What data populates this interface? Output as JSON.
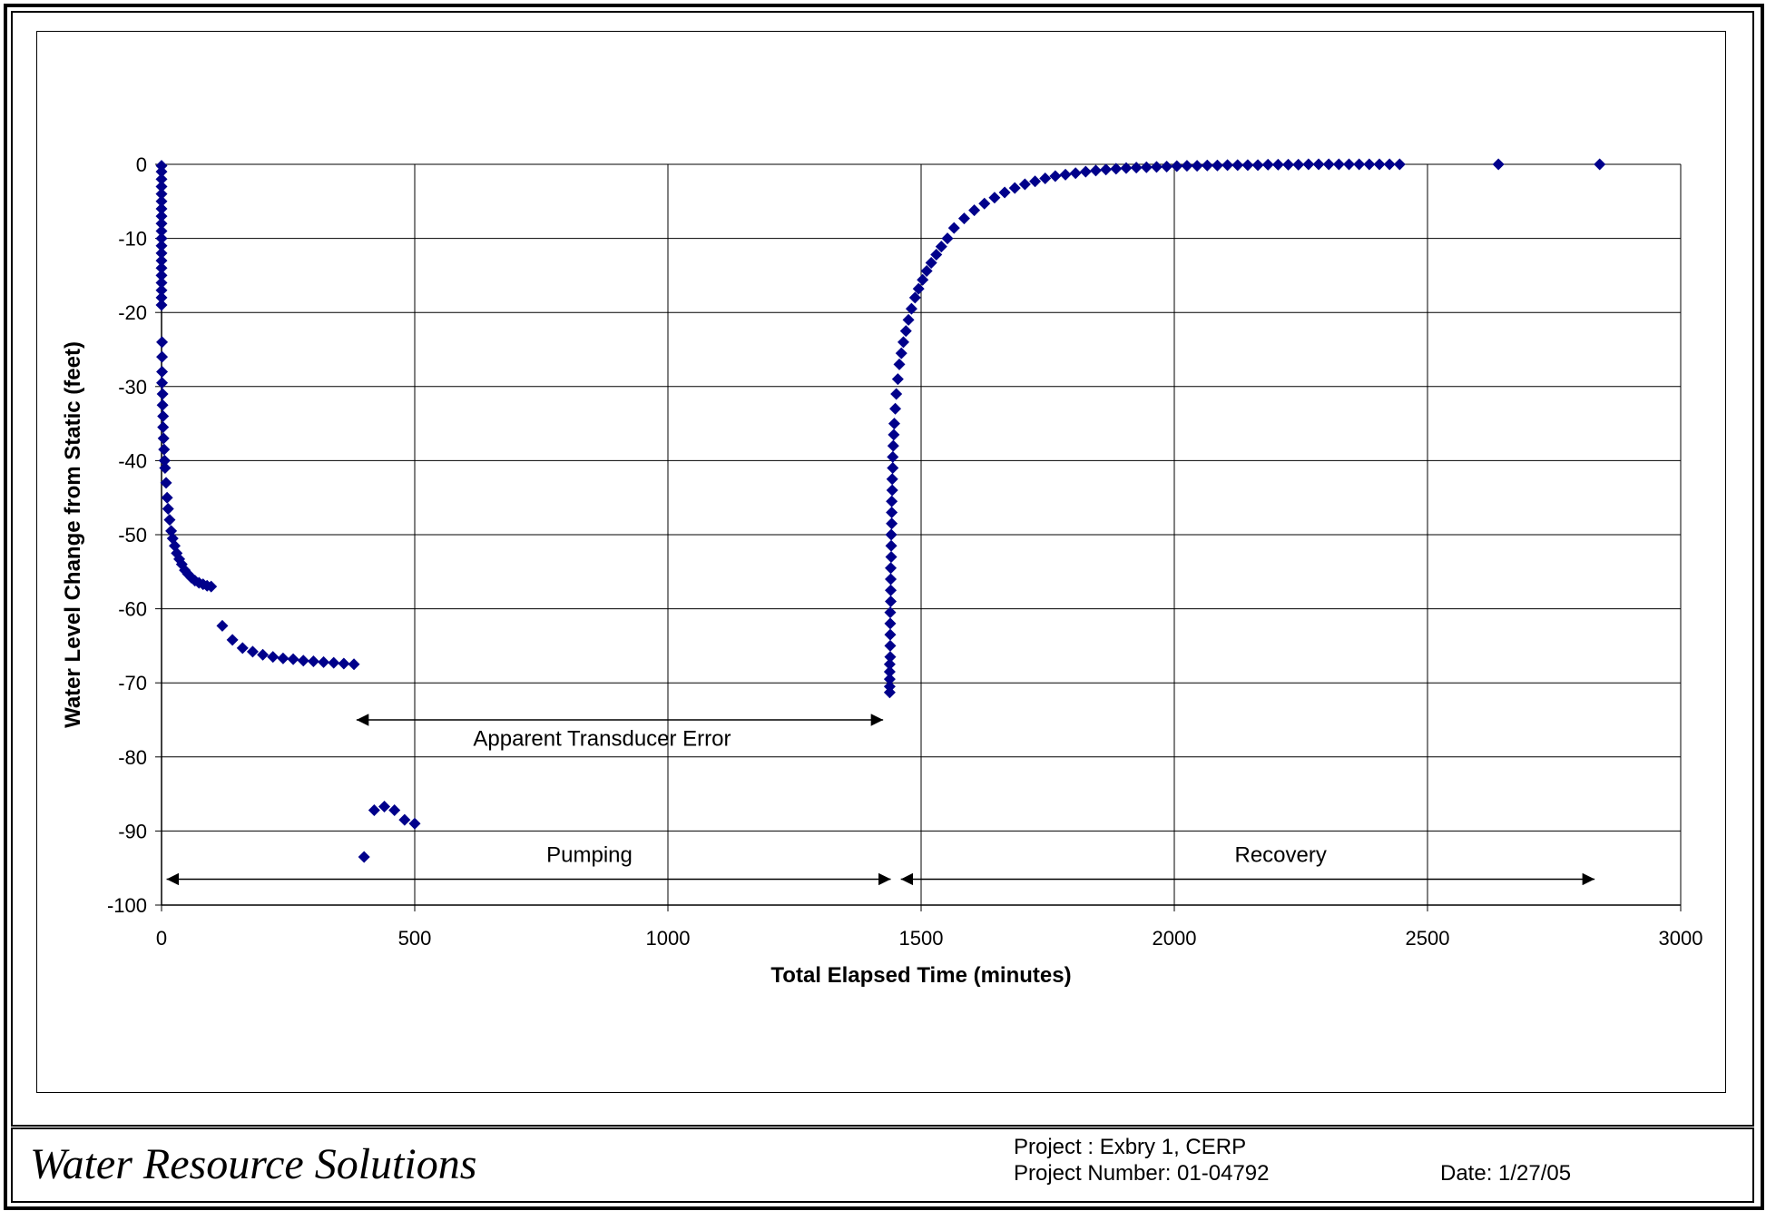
{
  "chart_data": {
    "type": "scatter",
    "title": "",
    "xlabel": "Total Elapsed Time (minutes)",
    "ylabel": "Water Level Change from Static (feet)",
    "xlim": [
      0,
      3000
    ],
    "ylim": [
      -100,
      0
    ],
    "x_ticks": [
      0,
      500,
      1000,
      1500,
      2000,
      2500,
      3000
    ],
    "y_ticks": [
      0,
      -10,
      -20,
      -30,
      -40,
      -50,
      -60,
      -70,
      -80,
      -90,
      -100
    ],
    "grid": true,
    "legend": "none",
    "marker": "diamond",
    "series": [
      {
        "color": "#00008B",
        "points": [
          [
            0,
            -0.2
          ],
          [
            0,
            -1
          ],
          [
            0,
            -2
          ],
          [
            0,
            -3
          ],
          [
            0,
            -4
          ],
          [
            0,
            -5
          ],
          [
            0,
            -6
          ],
          [
            0,
            -7
          ],
          [
            0,
            -8
          ],
          [
            0,
            -9
          ],
          [
            0,
            -10
          ],
          [
            0,
            -11
          ],
          [
            0,
            -12
          ],
          [
            0,
            -13
          ],
          [
            0,
            -14
          ],
          [
            0,
            -15
          ],
          [
            0,
            -16
          ],
          [
            0,
            -17
          ],
          [
            0,
            -18
          ],
          [
            0,
            -19
          ],
          [
            1,
            -24
          ],
          [
            1,
            -26
          ],
          [
            1,
            -28
          ],
          [
            1,
            -29.5
          ],
          [
            2,
            -31
          ],
          [
            2,
            -32.5
          ],
          [
            3,
            -34
          ],
          [
            3,
            -35.5
          ],
          [
            4,
            -37
          ],
          [
            5,
            -38.5
          ],
          [
            6,
            -40
          ],
          [
            7,
            -41
          ],
          [
            9,
            -43
          ],
          [
            11,
            -45
          ],
          [
            13,
            -46.5
          ],
          [
            16,
            -48
          ],
          [
            19,
            -49.5
          ],
          [
            22,
            -50.5
          ],
          [
            26,
            -51.5
          ],
          [
            30,
            -52.5
          ],
          [
            35,
            -53.3
          ],
          [
            40,
            -54
          ],
          [
            46,
            -54.8
          ],
          [
            52,
            -55.3
          ],
          [
            59,
            -55.8
          ],
          [
            66,
            -56.2
          ],
          [
            74,
            -56.5
          ],
          [
            82,
            -56.7
          ],
          [
            90,
            -56.9
          ],
          [
            98,
            -57
          ],
          [
            120,
            -62.3
          ],
          [
            140,
            -64.2
          ],
          [
            160,
            -65.3
          ],
          [
            180,
            -65.8
          ],
          [
            200,
            -66.2
          ],
          [
            220,
            -66.5
          ],
          [
            240,
            -66.7
          ],
          [
            260,
            -66.8
          ],
          [
            280,
            -67
          ],
          [
            300,
            -67.1
          ],
          [
            320,
            -67.2
          ],
          [
            340,
            -67.3
          ],
          [
            360,
            -67.4
          ],
          [
            380,
            -67.5
          ],
          [
            400,
            -93.5
          ],
          [
            420,
            -87.2
          ],
          [
            440,
            -86.7
          ],
          [
            460,
            -87.2
          ],
          [
            480,
            -88.5
          ],
          [
            500,
            -89
          ],
          [
            1438,
            -71.3
          ],
          [
            1438,
            -70.5
          ],
          [
            1438,
            -69.5
          ],
          [
            1438,
            -68.5
          ],
          [
            1438,
            -67.5
          ],
          [
            1439,
            -66.5
          ],
          [
            1439,
            -65
          ],
          [
            1439,
            -63.5
          ],
          [
            1439,
            -62
          ],
          [
            1439,
            -60.5
          ],
          [
            1440,
            -59
          ],
          [
            1440,
            -57.5
          ],
          [
            1440,
            -56
          ],
          [
            1440,
            -54.5
          ],
          [
            1441,
            -53
          ],
          [
            1441,
            -51.5
          ],
          [
            1441,
            -50
          ],
          [
            1442,
            -48.5
          ],
          [
            1442,
            -47
          ],
          [
            1442,
            -45.5
          ],
          [
            1443,
            -44
          ],
          [
            1443,
            -42.5
          ],
          [
            1444,
            -41
          ],
          [
            1444,
            -39.5
          ],
          [
            1445,
            -38
          ],
          [
            1446,
            -36.5
          ],
          [
            1447,
            -35
          ],
          [
            1449,
            -33
          ],
          [
            1451,
            -31
          ],
          [
            1454,
            -29
          ],
          [
            1457,
            -27
          ],
          [
            1461,
            -25.5
          ],
          [
            1465,
            -24
          ],
          [
            1470,
            -22.5
          ],
          [
            1475,
            -21
          ],
          [
            1481,
            -19.5
          ],
          [
            1488,
            -18
          ],
          [
            1495,
            -16.8
          ],
          [
            1503,
            -15.6
          ],
          [
            1511,
            -14.4
          ],
          [
            1520,
            -13.3
          ],
          [
            1530,
            -12.2
          ],
          [
            1540,
            -11.1
          ],
          [
            1552,
            -10
          ],
          [
            1565,
            -8.6
          ],
          [
            1585,
            -7.3
          ],
          [
            1605,
            -6.2
          ],
          [
            1625,
            -5.3
          ],
          [
            1645,
            -4.5
          ],
          [
            1665,
            -3.8
          ],
          [
            1685,
            -3.2
          ],
          [
            1705,
            -2.7
          ],
          [
            1725,
            -2.3
          ],
          [
            1745,
            -1.9
          ],
          [
            1765,
            -1.6
          ],
          [
            1785,
            -1.4
          ],
          [
            1805,
            -1.2
          ],
          [
            1825,
            -1
          ],
          [
            1845,
            -0.85
          ],
          [
            1865,
            -0.7
          ],
          [
            1885,
            -0.6
          ],
          [
            1905,
            -0.5
          ],
          [
            1925,
            -0.45
          ],
          [
            1945,
            -0.4
          ],
          [
            1965,
            -0.35
          ],
          [
            1985,
            -0.3
          ],
          [
            2005,
            -0.25
          ],
          [
            2025,
            -0.2
          ],
          [
            2045,
            -0.2
          ],
          [
            2065,
            -0.15
          ],
          [
            2085,
            -0.15
          ],
          [
            2105,
            -0.1
          ],
          [
            2125,
            -0.1
          ],
          [
            2145,
            -0.1
          ],
          [
            2165,
            -0.1
          ],
          [
            2185,
            -0.05
          ],
          [
            2205,
            -0.05
          ],
          [
            2225,
            -0.05
          ],
          [
            2245,
            -0.05
          ],
          [
            2265,
            0
          ],
          [
            2285,
            0
          ],
          [
            2305,
            0
          ],
          [
            2325,
            0
          ],
          [
            2345,
            0
          ],
          [
            2365,
            0
          ],
          [
            2385,
            0
          ],
          [
            2405,
            0
          ],
          [
            2425,
            0
          ],
          [
            2445,
            0
          ],
          [
            2640,
            0
          ],
          [
            2840,
            0
          ]
        ]
      }
    ],
    "annotations": [
      {
        "text": "Apparent Transducer Error",
        "arrow": [
          385,
          1425,
          -75
        ],
        "label_at": [
          870,
          -77.5
        ]
      },
      {
        "text": "Pumping",
        "arrow": [
          10,
          1440,
          -96.5
        ],
        "label_at": [
          845,
          -93.2
        ]
      },
      {
        "text": "Recovery",
        "arrow": [
          1460,
          2830,
          -96.5
        ],
        "label_at": [
          2210,
          -93.2
        ]
      }
    ]
  },
  "footer": {
    "company": "Water Resource Solutions",
    "project": "Project : Exbry 1, CERP",
    "project_number": "Project Number:  01-04792",
    "date": "Date:  1/27/05"
  }
}
